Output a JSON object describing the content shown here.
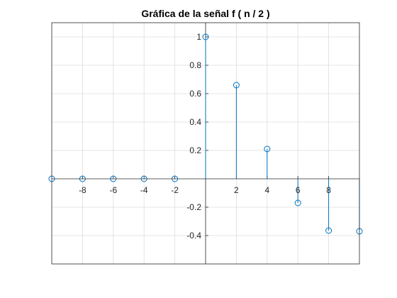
{
  "chart_data": {
    "type": "stem",
    "title": "Gráfica de la señal f ( n / 2 )",
    "xlabel": "",
    "ylabel": "",
    "xlim": [
      -10,
      10
    ],
    "ylim": [
      -0.6,
      1.1
    ],
    "grid": true,
    "axes_through_origin": true,
    "marker": "open-circle",
    "color": "#0072bd",
    "x_ticks": [
      -8,
      -6,
      -4,
      -2,
      2,
      4,
      6,
      8
    ],
    "x_tick_labels": [
      "-8",
      "-6",
      "-4",
      "-2",
      "2",
      "4",
      "6",
      "8"
    ],
    "y_ticks": [
      -0.4,
      -0.2,
      0.2,
      0.4,
      0.6,
      0.8,
      1
    ],
    "y_tick_labels": [
      "-0.4",
      "-0.2",
      "0.2",
      "0.4",
      "0.6",
      "0.8",
      "1"
    ],
    "series": [
      {
        "x": [
          -10,
          -8,
          -6,
          -4,
          -2,
          0,
          2,
          4,
          6,
          8,
          10
        ],
        "y": [
          0,
          0,
          0,
          0,
          0,
          1,
          0.66,
          0.21,
          -0.17,
          -0.365,
          -0.37
        ]
      }
    ]
  }
}
